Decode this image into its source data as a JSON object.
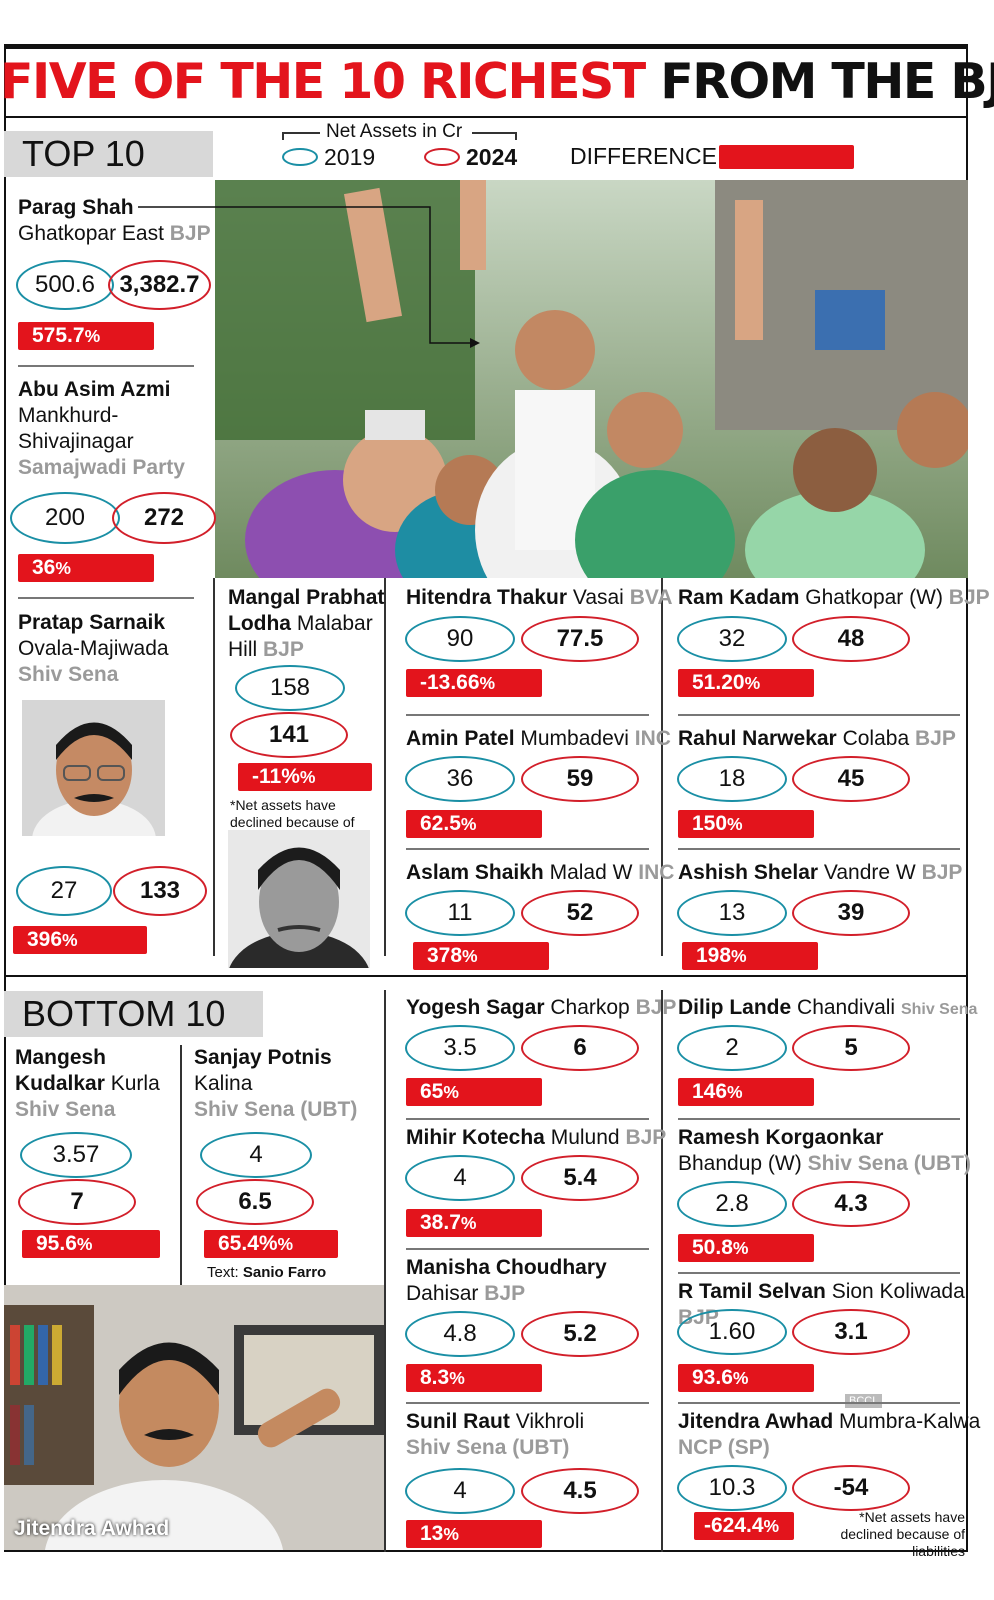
{
  "title": {
    "part1": "FIVE OF THE 10 RICHEST",
    "part2": "FROM THE BJP"
  },
  "colors": {
    "red": "#e3141c",
    "teal": "#1a8fa5",
    "gray_party": "#9a9a9a"
  },
  "legend": {
    "header": "Net Assets in Cr",
    "y2019": "2019",
    "y2024": "2024",
    "difference": "DIFFERENCE"
  },
  "sections": {
    "top": "TOP 10",
    "bottom": "BOTTOM 10"
  },
  "credit": {
    "label": "Text:",
    "name": "Sanio Farro"
  },
  "photo_caption": "Jitendra Awhad",
  "bccl": "BCCL",
  "notes": {
    "lodha": "*Net assets have declined because of liabilities",
    "awhad": "*Net assets have declined because of liabilities"
  },
  "top": {
    "shah": {
      "name": "Parag Shah",
      "seat": "Ghatkopar East",
      "party": "BJP",
      "v2019": "500.6",
      "v2024": "3,382.7",
      "diff": "575.7",
      "unit": "%"
    },
    "azmi": {
      "name": "Abu Asim Azmi",
      "seat1": "Mankhurd-",
      "seat2": "Shivajinagar",
      "party": "Samajwadi Party",
      "v2019": "200",
      "v2024": "272",
      "diff": "36",
      "unit": "%"
    },
    "sarnaik": {
      "name": "Pratap Sarnaik",
      "seat": "Ovala-Majiwada",
      "party": "Shiv Sena",
      "v2019": "27",
      "v2024": "133",
      "diff": "396",
      "unit": "%"
    },
    "lodha": {
      "name1": "Mangal Prabhat",
      "name2": "Lodha",
      "seat1": "Malabar",
      "seat2": "Hill",
      "party": "BJP",
      "v2019": "158",
      "v2024": "141",
      "diff": "-11%",
      "unit": "%"
    },
    "thakur": {
      "name": "Hitendra Thakur",
      "seat": "Vasai",
      "party": "BVA",
      "v2019": "90",
      "v2024": "77.5",
      "diff": "-13.66",
      "unit": "%"
    },
    "kadam": {
      "name": "Ram Kadam",
      "seat": "Ghatkopar (W)",
      "party": "BJP",
      "v2019": "32",
      "v2024": "48",
      "diff": "51.20",
      "unit": "%"
    },
    "patel": {
      "name": "Amin Patel",
      "seat": "Mumbadevi",
      "party": "INC",
      "v2019": "36",
      "v2024": "59",
      "diff": "62.5",
      "unit": "%"
    },
    "narwekar": {
      "name": "Rahul Narwekar",
      "seat": "Colaba",
      "party": "BJP",
      "v2019": "18",
      "v2024": "45",
      "diff": "150",
      "unit": "%"
    },
    "shaikh": {
      "name": "Aslam Shaikh",
      "seat": "Malad W",
      "party": "INC",
      "v2019": "11",
      "v2024": "52",
      "diff": "378",
      "unit": "%"
    },
    "shelar": {
      "name": "Ashish Shelar",
      "seat": "Vandre W",
      "party": "BJP",
      "v2019": "13",
      "v2024": "39",
      "diff": "198",
      "unit": "%"
    }
  },
  "bottom": {
    "kudalkar": {
      "name1": "Mangesh",
      "name2": "Kudalkar",
      "seat": "Kurla",
      "party": "Shiv Sena",
      "v2019": "3.57",
      "v2024": "7",
      "diff": "95.6",
      "unit": "%"
    },
    "potnis": {
      "name": "Sanjay Potnis",
      "seat": "Kalina",
      "party": "Shiv Sena (UBT)",
      "v2019": "4",
      "v2024": "6.5",
      "diff": "65.4%",
      "unit": "%"
    },
    "sagar": {
      "name": "Yogesh Sagar",
      "seat": "Charkop",
      "party": "BJP",
      "v2019": "3.5",
      "v2024": "6",
      "diff": "65",
      "unit": "%"
    },
    "lande": {
      "name": "Dilip Lande",
      "seat": "Chandivali",
      "party": "Shiv Sena",
      "v2019": "2",
      "v2024": "5",
      "diff": "146",
      "unit": "%"
    },
    "kotecha": {
      "name": "Mihir Kotecha",
      "seat": "Mulund",
      "party": "BJP",
      "v2019": "4",
      "v2024": "5.4",
      "diff": "38.7",
      "unit": "%"
    },
    "korgaonkar": {
      "name": "Ramesh Korgaonkar",
      "seat": "Bhandup (W)",
      "party": "Shiv Sena (UBT)",
      "v2019": "2.8",
      "v2024": "4.3",
      "diff": "50.8",
      "unit": "%"
    },
    "choudhary": {
      "name": "Manisha Choudhary",
      "seat": "Dahisar",
      "party": "BJP",
      "v2019": "4.8",
      "v2024": "5.2",
      "diff": "8.3",
      "unit": "%"
    },
    "selvan": {
      "name": "R Tamil Selvan",
      "seat": "Sion Koliwada",
      "party": "BJP",
      "v2019": "1.60",
      "v2024": "3.1",
      "diff": "93.6",
      "unit": "%"
    },
    "raut": {
      "name": "Sunil Raut",
      "seat": "Vikhroli",
      "party": "Shiv Sena (UBT)",
      "v2019": "4",
      "v2024": "4.5",
      "diff": "13",
      "unit": "%"
    },
    "awhad": {
      "name": "Jitendra Awhad",
      "seat": "Mumbra-Kalwa",
      "party": "NCP (SP)",
      "v2019": "10.3",
      "v2024": "-54",
      "diff": "-624.4",
      "unit": "%"
    }
  }
}
